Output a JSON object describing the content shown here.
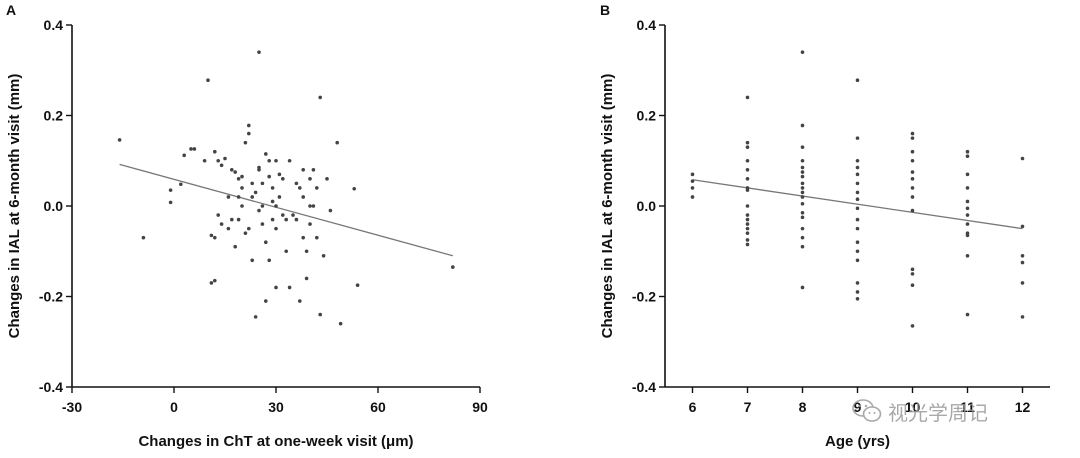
{
  "chart_data": [
    {
      "panel_label": "A",
      "type": "scatter",
      "xlabel": "Changes in ChT at one-week visit (μm)",
      "ylabel": "Changes in IAL at 6-month visit (mm)",
      "xlim": [
        -30,
        90
      ],
      "ylim": [
        -0.4,
        0.4
      ],
      "xticks": [
        -30,
        0,
        30,
        60,
        90
      ],
      "yticks": [
        -0.4,
        -0.2,
        0.0,
        0.2,
        0.4
      ],
      "ytick_labels": [
        "-0.4",
        "-0.2",
        "0.0",
        "0.2",
        "0.4"
      ],
      "trendline": {
        "x": [
          -16,
          82
        ],
        "y": [
          0.092,
          -0.11
        ]
      },
      "points": [
        [
          -16,
          0.146
        ],
        [
          -9,
          -0.07
        ],
        [
          -1,
          0.035
        ],
        [
          -1,
          0.008
        ],
        [
          2,
          0.048
        ],
        [
          3,
          0.112
        ],
        [
          5,
          0.126
        ],
        [
          6,
          0.126
        ],
        [
          9,
          0.1
        ],
        [
          10,
          0.278
        ],
        [
          11,
          -0.065
        ],
        [
          11,
          -0.17
        ],
        [
          12,
          -0.165
        ],
        [
          12,
          0.12
        ],
        [
          12,
          -0.07
        ],
        [
          13,
          0.1
        ],
        [
          13,
          -0.02
        ],
        [
          14,
          -0.04
        ],
        [
          14,
          0.09
        ],
        [
          15,
          0.105
        ],
        [
          16,
          0.02
        ],
        [
          16,
          -0.05
        ],
        [
          17,
          -0.03
        ],
        [
          17,
          0.08
        ],
        [
          18,
          0.075
        ],
        [
          18,
          -0.09
        ],
        [
          19,
          0.06
        ],
        [
          19,
          0.02
        ],
        [
          19,
          -0.03
        ],
        [
          20,
          0.04
        ],
        [
          20,
          0.065
        ],
        [
          20,
          0.0
        ],
        [
          21,
          -0.06
        ],
        [
          21,
          0.14
        ],
        [
          22,
          0.178
        ],
        [
          22,
          0.16
        ],
        [
          22,
          -0.05
        ],
        [
          23,
          -0.12
        ],
        [
          23,
          0.02
        ],
        [
          23,
          0.05
        ],
        [
          24,
          -0.245
        ],
        [
          24,
          0.03
        ],
        [
          25,
          0.34
        ],
        [
          25,
          0.085
        ],
        [
          25,
          0.08
        ],
        [
          25,
          -0.01
        ],
        [
          26,
          0.05
        ],
        [
          26,
          0.0
        ],
        [
          26,
          -0.04
        ],
        [
          27,
          0.115
        ],
        [
          27,
          -0.08
        ],
        [
          27,
          -0.21
        ],
        [
          28,
          0.1
        ],
        [
          28,
          -0.12
        ],
        [
          28,
          0.065
        ],
        [
          29,
          -0.03
        ],
        [
          29,
          0.04
        ],
        [
          29,
          0.01
        ],
        [
          30,
          0.1
        ],
        [
          30,
          0.0
        ],
        [
          30,
          -0.05
        ],
        [
          30,
          -0.18
        ],
        [
          31,
          0.02
        ],
        [
          31,
          0.07
        ],
        [
          32,
          -0.02
        ],
        [
          32,
          0.06
        ],
        [
          33,
          -0.1
        ],
        [
          33,
          -0.03
        ],
        [
          34,
          -0.18
        ],
        [
          34,
          0.1
        ],
        [
          35,
          -0.02
        ],
        [
          36,
          0.05
        ],
        [
          36,
          -0.03
        ],
        [
          37,
          0.04
        ],
        [
          37,
          -0.21
        ],
        [
          38,
          0.08
        ],
        [
          38,
          -0.07
        ],
        [
          38,
          0.02
        ],
        [
          39,
          -0.1
        ],
        [
          39,
          -0.16
        ],
        [
          40,
          0.06
        ],
        [
          40,
          -0.04
        ],
        [
          40,
          0.0
        ],
        [
          41,
          0.0
        ],
        [
          41,
          0.08
        ],
        [
          42,
          0.04
        ],
        [
          42,
          -0.07
        ],
        [
          43,
          0.24
        ],
        [
          43,
          -0.24
        ],
        [
          44,
          -0.11
        ],
        [
          45,
          0.06
        ],
        [
          46,
          -0.01
        ],
        [
          48,
          0.14
        ],
        [
          49,
          -0.26
        ],
        [
          53,
          0.038
        ],
        [
          54,
          -0.175
        ],
        [
          82,
          -0.135
        ]
      ]
    },
    {
      "panel_label": "B",
      "type": "scatter",
      "xlabel": "Age (yrs)",
      "ylabel": "Changes in IAL at 6-month visit (mm)",
      "xlim": [
        5.5,
        12.5
      ],
      "ylim": [
        -0.4,
        0.4
      ],
      "xticks": [
        6,
        7,
        8,
        9,
        10,
        11,
        12
      ],
      "yticks": [
        -0.4,
        -0.2,
        0.0,
        0.2,
        0.4
      ],
      "ytick_labels": [
        "-0.4",
        "-0.2",
        "0.0",
        "0.2",
        "0.4"
      ],
      "trendline": {
        "x": [
          6,
          12
        ],
        "y": [
          0.058,
          -0.05
        ]
      },
      "points": [
        [
          6,
          0.07
        ],
        [
          6,
          0.055
        ],
        [
          6,
          0.04
        ],
        [
          6,
          0.02
        ],
        [
          7,
          0.24
        ],
        [
          7,
          0.14
        ],
        [
          7,
          0.13
        ],
        [
          7,
          0.1
        ],
        [
          7,
          0.08
        ],
        [
          7,
          0.06
        ],
        [
          7,
          0.04
        ],
        [
          7,
          0.035
        ],
        [
          7,
          0.0
        ],
        [
          7,
          -0.02
        ],
        [
          7,
          -0.03
        ],
        [
          7,
          -0.04
        ],
        [
          7,
          -0.05
        ],
        [
          7,
          -0.06
        ],
        [
          7,
          -0.075
        ],
        [
          7,
          -0.085
        ],
        [
          8,
          0.34
        ],
        [
          8,
          0.178
        ],
        [
          8,
          0.13
        ],
        [
          8,
          0.1
        ],
        [
          8,
          0.085
        ],
        [
          8,
          0.075
        ],
        [
          8,
          0.065
        ],
        [
          8,
          0.05
        ],
        [
          8,
          0.04
        ],
        [
          8,
          0.03
        ],
        [
          8,
          0.02
        ],
        [
          8,
          0.005
        ],
        [
          8,
          -0.015
        ],
        [
          8,
          -0.025
        ],
        [
          8,
          -0.05
        ],
        [
          8,
          -0.07
        ],
        [
          8,
          -0.09
        ],
        [
          8,
          -0.18
        ],
        [
          9,
          0.278
        ],
        [
          9,
          0.15
        ],
        [
          9,
          0.1
        ],
        [
          9,
          0.085
        ],
        [
          9,
          0.07
        ],
        [
          9,
          0.05
        ],
        [
          9,
          0.03
        ],
        [
          9,
          0.015
        ],
        [
          9,
          -0.005
        ],
        [
          9,
          -0.03
        ],
        [
          9,
          -0.05
        ],
        [
          9,
          -0.08
        ],
        [
          9,
          -0.1
        ],
        [
          9,
          -0.12
        ],
        [
          9,
          -0.17
        ],
        [
          9,
          -0.19
        ],
        [
          9,
          -0.205
        ],
        [
          10,
          0.16
        ],
        [
          10,
          0.15
        ],
        [
          10,
          0.12
        ],
        [
          10,
          0.1
        ],
        [
          10,
          0.075
        ],
        [
          10,
          0.06
        ],
        [
          10,
          0.04
        ],
        [
          10,
          0.02
        ],
        [
          10,
          -0.01
        ],
        [
          10,
          -0.14
        ],
        [
          10,
          -0.15
        ],
        [
          10,
          -0.175
        ],
        [
          10,
          -0.265
        ],
        [
          11,
          0.12
        ],
        [
          11,
          0.11
        ],
        [
          11,
          0.07
        ],
        [
          11,
          0.04
        ],
        [
          11,
          0.01
        ],
        [
          11,
          -0.005
        ],
        [
          11,
          -0.02
        ],
        [
          11,
          -0.04
        ],
        [
          11,
          -0.06
        ],
        [
          11,
          -0.065
        ],
        [
          11,
          -0.11
        ],
        [
          11,
          -0.24
        ],
        [
          12,
          0.105
        ],
        [
          12,
          -0.045
        ],
        [
          12,
          -0.11
        ],
        [
          12,
          -0.125
        ],
        [
          12,
          -0.17
        ],
        [
          12,
          -0.245
        ]
      ]
    }
  ],
  "watermark": {
    "text": "视光学周记",
    "icon": "wechat-icon"
  }
}
